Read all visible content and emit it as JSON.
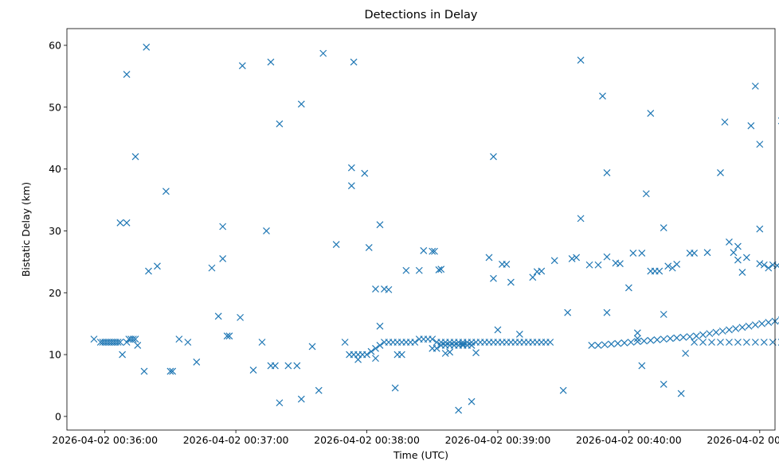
{
  "chart_data": {
    "type": "scatter",
    "title": "Detections in Delay",
    "xlabel": "Time (UTC)",
    "ylabel": "Bistatic Delay (km)",
    "marker": "x",
    "color": "#1f77b4",
    "grid": false,
    "x_unit": "seconds after 2026-04-02 00:36:00",
    "xlim": [
      -17.4,
      307
    ],
    "ylim": [
      -2.2,
      62.7
    ],
    "x_ticks": [
      0,
      60,
      120,
      180,
      240,
      300
    ],
    "x_tick_labels": [
      "2026-04-02 00:36:00",
      "2026-04-02 00:37:00",
      "2026-04-02 00:38:00",
      "2026-04-02 00:39:00",
      "2026-04-02 00:40:00",
      "2026-04-02 00:41:00"
    ],
    "y_ticks": [
      0,
      10,
      20,
      30,
      40,
      50,
      60
    ],
    "y_tick_labels": [
      "0",
      "10",
      "20",
      "30",
      "40",
      "50",
      "60"
    ],
    "series": [
      {
        "name": "tracks",
        "points": [
          [
            -2,
            12
          ],
          [
            -1,
            12
          ],
          [
            0,
            12
          ],
          [
            1,
            12
          ],
          [
            2,
            12
          ],
          [
            3,
            12
          ],
          [
            4,
            12
          ],
          [
            5,
            12
          ],
          [
            6,
            12
          ],
          [
            7,
            12
          ],
          [
            10,
            12
          ],
          [
            11,
            12.5
          ],
          [
            12,
            12.5
          ],
          [
            13,
            12.5
          ],
          [
            14,
            12.5
          ],
          [
            112,
            10
          ],
          [
            114,
            10
          ],
          [
            116,
            10
          ],
          [
            118,
            10
          ],
          [
            120,
            10
          ],
          [
            122,
            10.5
          ],
          [
            124,
            11
          ],
          [
            126,
            11.5
          ],
          [
            128,
            12
          ],
          [
            130,
            12
          ],
          [
            132,
            12
          ],
          [
            134,
            12
          ],
          [
            136,
            12
          ],
          [
            138,
            12
          ],
          [
            140,
            12
          ],
          [
            142,
            12
          ],
          [
            144,
            12.5
          ],
          [
            146,
            12.5
          ],
          [
            148,
            12.5
          ],
          [
            150,
            12.5
          ],
          [
            152,
            12
          ],
          [
            154,
            12
          ],
          [
            156,
            12
          ],
          [
            158,
            12
          ],
          [
            160,
            12
          ],
          [
            162,
            12
          ],
          [
            164,
            12
          ],
          [
            166,
            12
          ],
          [
            168,
            12
          ],
          [
            170,
            12
          ],
          [
            172,
            12
          ],
          [
            174,
            12
          ],
          [
            176,
            12
          ],
          [
            178,
            12
          ],
          [
            180,
            12
          ],
          [
            182,
            12
          ],
          [
            184,
            12
          ],
          [
            186,
            12
          ],
          [
            188,
            12
          ],
          [
            190,
            12
          ],
          [
            192,
            12
          ],
          [
            194,
            12
          ],
          [
            196,
            12
          ],
          [
            198,
            12
          ],
          [
            200,
            12
          ],
          [
            202,
            12
          ],
          [
            204,
            12
          ],
          [
            150,
            11
          ],
          [
            152,
            11
          ],
          [
            154,
            11.5
          ],
          [
            156,
            11.5
          ],
          [
            158,
            11.5
          ],
          [
            160,
            11.5
          ],
          [
            162,
            11.5
          ],
          [
            164,
            11.5
          ],
          [
            166,
            11.5
          ],
          [
            168,
            11.5
          ],
          [
            223,
            11.5
          ],
          [
            226,
            11.5
          ],
          [
            229,
            11.6
          ],
          [
            232,
            11.7
          ],
          [
            235,
            11.8
          ],
          [
            238,
            11.9
          ],
          [
            241,
            12
          ],
          [
            244,
            12.1
          ],
          [
            247,
            12.2
          ],
          [
            250,
            12.3
          ],
          [
            253,
            12.4
          ],
          [
            256,
            12.5
          ],
          [
            259,
            12.6
          ],
          [
            262,
            12.7
          ],
          [
            265,
            12.8
          ],
          [
            268,
            12.9
          ],
          [
            271,
            13
          ],
          [
            274,
            13.2
          ],
          [
            277,
            13.4
          ],
          [
            280,
            13.6
          ],
          [
            283,
            13.8
          ],
          [
            286,
            14
          ],
          [
            289,
            14.2
          ],
          [
            292,
            14.4
          ],
          [
            295,
            14.6
          ],
          [
            298,
            14.8
          ],
          [
            301,
            15
          ],
          [
            304,
            15.2
          ],
          [
            307,
            15.4
          ],
          [
            310,
            15.6
          ],
          [
            313,
            15.8
          ],
          [
            316,
            16
          ],
          [
            319,
            16.2
          ],
          [
            322,
            16.4
          ],
          [
            325,
            16.6
          ],
          [
            328,
            16.8
          ],
          [
            331,
            17
          ],
          [
            270,
            12
          ],
          [
            274,
            12
          ],
          [
            278,
            12
          ],
          [
            282,
            12
          ],
          [
            286,
            12
          ],
          [
            290,
            12
          ],
          [
            294,
            12
          ],
          [
            298,
            12
          ],
          [
            302,
            12
          ],
          [
            306,
            12
          ],
          [
            310,
            12
          ],
          [
            314,
            12
          ],
          [
            318,
            12
          ],
          [
            322,
            12
          ],
          [
            326,
            12
          ],
          [
            330,
            12
          ]
        ]
      },
      {
        "name": "scattered",
        "points": [
          [
            10,
            55.3
          ],
          [
            14,
            42
          ],
          [
            19,
            59.7
          ],
          [
            7,
            31.3
          ],
          [
            10,
            31.3
          ],
          [
            28,
            36.4
          ],
          [
            8,
            10
          ],
          [
            -5,
            12.5
          ],
          [
            15,
            11.5
          ],
          [
            18,
            7.3
          ],
          [
            20,
            23.5
          ],
          [
            24,
            24.3
          ],
          [
            30,
            7.3
          ],
          [
            31,
            7.3
          ],
          [
            34,
            12.5
          ],
          [
            38,
            12
          ],
          [
            42,
            8.8
          ],
          [
            49,
            24
          ],
          [
            52,
            16.2
          ],
          [
            54,
            30.7
          ],
          [
            54,
            25.5
          ],
          [
            56,
            13
          ],
          [
            57,
            13
          ],
          [
            62,
            16
          ],
          [
            63,
            56.7
          ],
          [
            68,
            7.5
          ],
          [
            72,
            12
          ],
          [
            74,
            30
          ],
          [
            76,
            57.3
          ],
          [
            76,
            8.2
          ],
          [
            78,
            8.2
          ],
          [
            80,
            47.3
          ],
          [
            80,
            2.2
          ],
          [
            84,
            8.2
          ],
          [
            88,
            8.2
          ],
          [
            90,
            50.5
          ],
          [
            90,
            2.8
          ],
          [
            95,
            11.3
          ],
          [
            98,
            4.2
          ],
          [
            100,
            58.7
          ],
          [
            106,
            27.8
          ],
          [
            110,
            12
          ],
          [
            113,
            40.2
          ],
          [
            113,
            37.3
          ],
          [
            114,
            57.3
          ],
          [
            116,
            9.2
          ],
          [
            119,
            39.3
          ],
          [
            121,
            27.3
          ],
          [
            124,
            9.4
          ],
          [
            124,
            20.6
          ],
          [
            126,
            31
          ],
          [
            126,
            14.6
          ],
          [
            128,
            20.6
          ],
          [
            130,
            20.5
          ],
          [
            133,
            4.6
          ],
          [
            134,
            10
          ],
          [
            136,
            10
          ],
          [
            138,
            23.6
          ],
          [
            144,
            23.6
          ],
          [
            146,
            26.8
          ],
          [
            150,
            26.7
          ],
          [
            151,
            26.7
          ],
          [
            153,
            23.7
          ],
          [
            154,
            23.8
          ],
          [
            156,
            10.2
          ],
          [
            158,
            10.4
          ],
          [
            162,
            1
          ],
          [
            164,
            11.7
          ],
          [
            168,
            2.4
          ],
          [
            170,
            10.3
          ],
          [
            176,
            25.7
          ],
          [
            178,
            42
          ],
          [
            178,
            22.3
          ],
          [
            180,
            14
          ],
          [
            182,
            24.6
          ],
          [
            184,
            24.6
          ],
          [
            186,
            21.7
          ],
          [
            190,
            13.3
          ],
          [
            196,
            22.5
          ],
          [
            198,
            23.4
          ],
          [
            200,
            23.5
          ],
          [
            206,
            25.2
          ],
          [
            210,
            4.2
          ],
          [
            212,
            16.8
          ],
          [
            214,
            25.5
          ],
          [
            216,
            25.7
          ],
          [
            218,
            57.6
          ],
          [
            218,
            32
          ],
          [
            222,
            24.5
          ],
          [
            226,
            24.5
          ],
          [
            228,
            51.8
          ],
          [
            230,
            39.4
          ],
          [
            230,
            25.8
          ],
          [
            230,
            16.8
          ],
          [
            234,
            24.8
          ],
          [
            236,
            24.7
          ],
          [
            240,
            20.8
          ],
          [
            242,
            26.4
          ],
          [
            244,
            13.5
          ],
          [
            244,
            12.6
          ],
          [
            246,
            26.4
          ],
          [
            246,
            8.2
          ],
          [
            248,
            36
          ],
          [
            250,
            49
          ],
          [
            250,
            23.5
          ],
          [
            252,
            23.5
          ],
          [
            254,
            23.5
          ],
          [
            256,
            30.5
          ],
          [
            256,
            16.5
          ],
          [
            256,
            5.2
          ],
          [
            258,
            24.3
          ],
          [
            260,
            24
          ],
          [
            262,
            24.6
          ],
          [
            264,
            3.7
          ],
          [
            266,
            10.2
          ],
          [
            268,
            26.4
          ],
          [
            270,
            26.4
          ],
          [
            276,
            26.5
          ],
          [
            282,
            39.4
          ],
          [
            284,
            47.6
          ],
          [
            286,
            28.2
          ],
          [
            288,
            26.5
          ],
          [
            290,
            25.3
          ],
          [
            290,
            27.5
          ],
          [
            292,
            23.3
          ],
          [
            294,
            25.7
          ],
          [
            296,
            47
          ],
          [
            298,
            53.4
          ],
          [
            300,
            44
          ],
          [
            300,
            30.3
          ],
          [
            300,
            24.7
          ],
          [
            302,
            24.5
          ],
          [
            304,
            24
          ],
          [
            306,
            24.5
          ],
          [
            308,
            24.4
          ],
          [
            310,
            47.8
          ],
          [
            312,
            53.6
          ],
          [
            312,
            27.7
          ],
          [
            314,
            24
          ],
          [
            316,
            23.9
          ],
          [
            318,
            27.2
          ],
          [
            320,
            34.3
          ],
          [
            322,
            5.5
          ],
          [
            322,
            43.2
          ],
          [
            324,
            36.5
          ],
          [
            324,
            24
          ],
          [
            326,
            24.4
          ],
          [
            330,
            20.6
          ]
        ]
      }
    ]
  }
}
